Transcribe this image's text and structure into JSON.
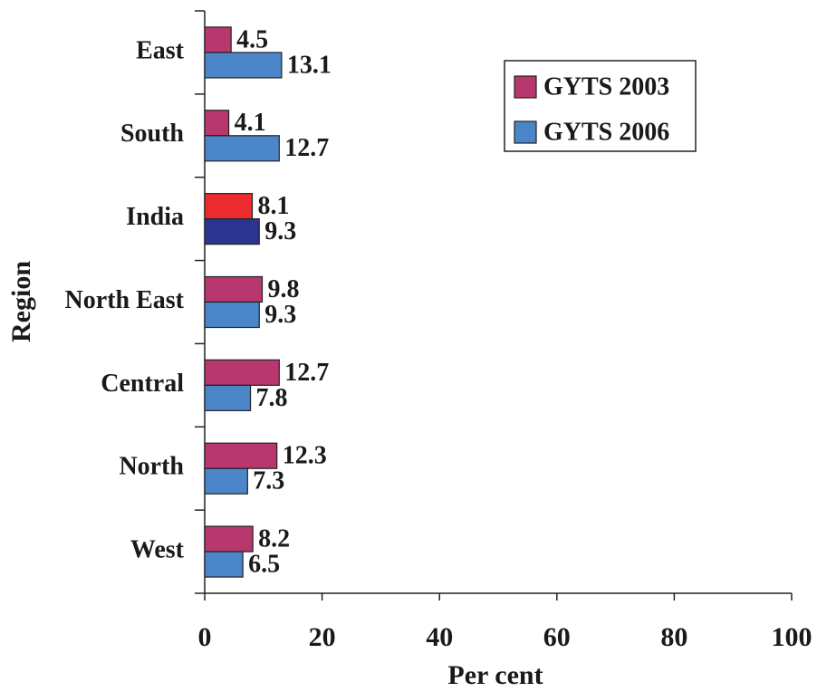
{
  "chart_data": {
    "type": "bar",
    "orientation": "horizontal",
    "x_label": "Per cent",
    "y_label": "Region",
    "categories": [
      "East",
      "South",
      "India",
      "North East",
      "Central",
      "North",
      "West"
    ],
    "series": [
      {
        "name": "GYTS 2003",
        "color": "#b8376f",
        "colors": [
          "#b8376f",
          "#b8376f",
          "#ee2b2e",
          "#b8376f",
          "#b8376f",
          "#b8376f",
          "#b8376f"
        ],
        "values": [
          4.5,
          4.1,
          8.1,
          9.8,
          12.7,
          12.3,
          8.2
        ]
      },
      {
        "name": "GYTS 2006",
        "color": "#4a86c8",
        "colors": [
          "#4a86c8",
          "#4a86c8",
          "#2b3591",
          "#4a86c8",
          "#4a86c8",
          "#4a86c8",
          "#4a86c8"
        ],
        "values": [
          13.1,
          12.7,
          9.3,
          9.3,
          7.8,
          7.3,
          6.5
        ]
      }
    ],
    "xlim": [
      0,
      100
    ],
    "xticks": [
      0,
      20,
      40,
      60,
      80,
      100
    ],
    "legend": "upper right"
  }
}
